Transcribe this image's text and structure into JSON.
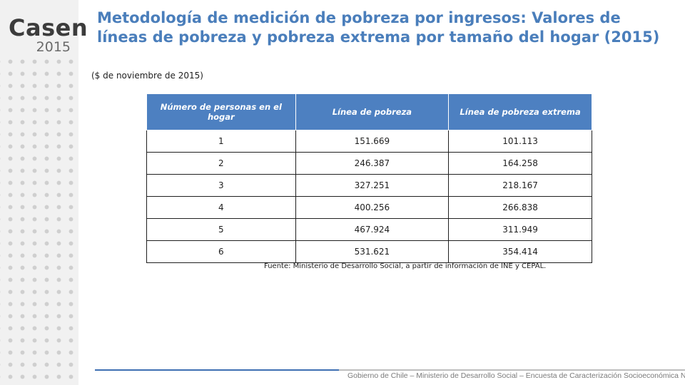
{
  "logo": {
    "name": "Casen",
    "year": "2015"
  },
  "title": "Metodología de medición de pobreza por ingresos: Valores de líneas de pobreza y pobreza extrema por tamaño del hogar (2015)",
  "subtitle": "($ de noviembre de 2015)",
  "table": {
    "headers": [
      "Número de personas en el hogar",
      "Línea de pobreza",
      "Línea de pobreza extrema"
    ],
    "rows": [
      [
        "1",
        "151.669",
        "101.113"
      ],
      [
        "2",
        "246.387",
        "164.258"
      ],
      [
        "3",
        "327.251",
        "218.167"
      ],
      [
        "4",
        "400.256",
        "266.838"
      ],
      [
        "5",
        "467.924",
        "311.949"
      ],
      [
        "6",
        "531.621",
        "354.414"
      ]
    ]
  },
  "source": "Fuente: Ministerio de Desarrollo Social, a partir de información de INE y CEPAL.",
  "footer": "Gobierno de Chile – Ministerio de Desarrollo Social – Encuesta de Caracterización Socioeconómica Nacional",
  "colors": {
    "accent": "#4a7ebb",
    "header_fill": "#4d80c1",
    "sidebar": "#f1f1f1"
  }
}
